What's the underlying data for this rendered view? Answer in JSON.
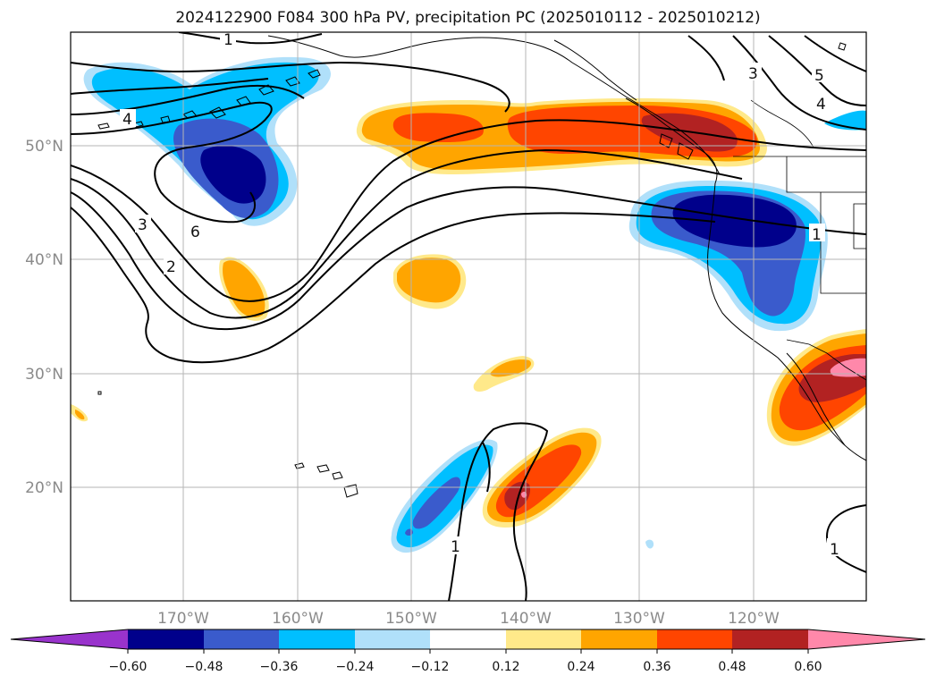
{
  "title": "2024122900 F084 300 hPa PV, precipitation PC (2025010112 - 2025010212)",
  "lat_labels": [
    "50°N",
    "40°N",
    "30°N",
    "20°N"
  ],
  "lon_labels": [
    "170°W",
    "160°W",
    "150°W",
    "140°W",
    "130°W",
    "120°W"
  ],
  "colorbar": {
    "ticks": [
      "−0.60",
      "−0.48",
      "−0.36",
      "−0.24",
      "−0.12",
      "0.12",
      "0.24",
      "0.36",
      "0.48",
      "0.60"
    ],
    "colors": {
      "under": "#9933cc",
      "neg060": "#00008b",
      "neg048": "#3a5bcc",
      "neg036": "#00bfff",
      "neg024": "#b0e0fa",
      "neutral": "#ffffff",
      "pos012": "#ffe98a",
      "pos024": "#ffa500",
      "pos036": "#ff4500",
      "pos048": "#b22222",
      "over": "#ff88aa"
    }
  },
  "contour_labels": [
    "1",
    "2",
    "3",
    "4",
    "5",
    "6",
    "1",
    "1",
    "1",
    "3",
    "4"
  ]
}
